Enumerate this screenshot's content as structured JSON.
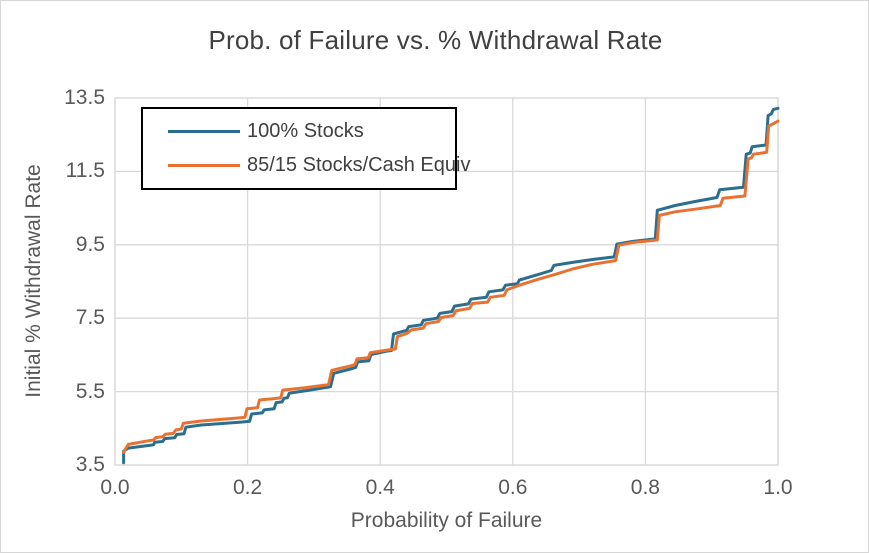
{
  "chart": {
    "background": "#FFFFFF",
    "border_color": "#D6D6D6",
    "grid_color": "#D9D9D9",
    "title_color": "#404040",
    "axis_text_color": "#595959",
    "legend_text_color": "#404040",
    "legend_border_color": "#000000"
  },
  "chart_data": {
    "type": "line",
    "title": "Prob. of Failure vs. % Withdrawal Rate",
    "xlabel": "Probability of Failure",
    "ylabel": "Initial % Withdrawal Rate",
    "xlim": [
      0.0,
      1.0
    ],
    "ylim": [
      3.5,
      13.5
    ],
    "x_ticks": [
      "0.0",
      "0.2",
      "0.4",
      "0.6",
      "0.8",
      "1.0"
    ],
    "y_ticks": [
      "3.5",
      "5.5",
      "7.5",
      "9.5",
      "11.5",
      "13.5"
    ],
    "grid": true,
    "legend_position": "top-left",
    "series": [
      {
        "name": "100% Stocks",
        "color": "#2B6E8E",
        "points": [
          [
            0.013,
            3.56
          ],
          [
            0.013,
            3.88
          ],
          [
            0.02,
            3.96
          ],
          [
            0.05,
            4.03
          ],
          [
            0.058,
            4.05
          ],
          [
            0.06,
            4.12
          ],
          [
            0.072,
            4.14
          ],
          [
            0.075,
            4.22
          ],
          [
            0.09,
            4.24
          ],
          [
            0.093,
            4.33
          ],
          [
            0.104,
            4.35
          ],
          [
            0.107,
            4.53
          ],
          [
            0.13,
            4.59
          ],
          [
            0.19,
            4.67
          ],
          [
            0.203,
            4.69
          ],
          [
            0.206,
            4.89
          ],
          [
            0.222,
            4.92
          ],
          [
            0.225,
            5.0
          ],
          [
            0.24,
            5.03
          ],
          [
            0.243,
            5.2
          ],
          [
            0.252,
            5.22
          ],
          [
            0.255,
            5.32
          ],
          [
            0.26,
            5.33
          ],
          [
            0.263,
            5.46
          ],
          [
            0.29,
            5.53
          ],
          [
            0.325,
            5.63
          ],
          [
            0.33,
            6.0
          ],
          [
            0.358,
            6.13
          ],
          [
            0.363,
            6.16
          ],
          [
            0.366,
            6.31
          ],
          [
            0.383,
            6.34
          ],
          [
            0.386,
            6.51
          ],
          [
            0.41,
            6.6
          ],
          [
            0.417,
            6.62
          ],
          [
            0.42,
            7.07
          ],
          [
            0.44,
            7.17
          ],
          [
            0.443,
            7.27
          ],
          [
            0.462,
            7.32
          ],
          [
            0.465,
            7.44
          ],
          [
            0.486,
            7.5
          ],
          [
            0.49,
            7.63
          ],
          [
            0.508,
            7.68
          ],
          [
            0.512,
            7.83
          ],
          [
            0.533,
            7.89
          ],
          [
            0.537,
            8.02
          ],
          [
            0.56,
            8.07
          ],
          [
            0.564,
            8.22
          ],
          [
            0.585,
            8.27
          ],
          [
            0.589,
            8.4
          ],
          [
            0.607,
            8.44
          ],
          [
            0.61,
            8.54
          ],
          [
            0.64,
            8.7
          ],
          [
            0.658,
            8.8
          ],
          [
            0.662,
            8.94
          ],
          [
            0.69,
            9.02
          ],
          [
            0.72,
            9.1
          ],
          [
            0.753,
            9.17
          ],
          [
            0.757,
            9.52
          ],
          [
            0.78,
            9.59
          ],
          [
            0.815,
            9.66
          ],
          [
            0.818,
            10.44
          ],
          [
            0.845,
            10.57
          ],
          [
            0.875,
            10.68
          ],
          [
            0.908,
            10.79
          ],
          [
            0.912,
            11.0
          ],
          [
            0.948,
            11.07
          ],
          [
            0.952,
            11.97
          ],
          [
            0.958,
            12.0
          ],
          [
            0.961,
            12.17
          ],
          [
            0.982,
            12.22
          ],
          [
            0.985,
            13.02
          ],
          [
            0.99,
            13.07
          ],
          [
            0.993,
            13.19
          ],
          [
            1.0,
            13.22
          ]
        ]
      },
      {
        "name": "85/15 Stocks/Cash Equiv",
        "color": "#E97132",
        "points": [
          [
            0.013,
            3.84
          ],
          [
            0.016,
            3.94
          ],
          [
            0.02,
            4.06
          ],
          [
            0.05,
            4.16
          ],
          [
            0.058,
            4.18
          ],
          [
            0.062,
            4.25
          ],
          [
            0.072,
            4.27
          ],
          [
            0.076,
            4.34
          ],
          [
            0.088,
            4.36
          ],
          [
            0.092,
            4.46
          ],
          [
            0.1,
            4.48
          ],
          [
            0.103,
            4.64
          ],
          [
            0.13,
            4.7
          ],
          [
            0.19,
            4.79
          ],
          [
            0.196,
            4.8
          ],
          [
            0.199,
            5.03
          ],
          [
            0.215,
            5.06
          ],
          [
            0.218,
            5.27
          ],
          [
            0.24,
            5.31
          ],
          [
            0.25,
            5.33
          ],
          [
            0.253,
            5.54
          ],
          [
            0.285,
            5.6
          ],
          [
            0.322,
            5.69
          ],
          [
            0.327,
            6.08
          ],
          [
            0.355,
            6.2
          ],
          [
            0.362,
            6.24
          ],
          [
            0.365,
            6.39
          ],
          [
            0.382,
            6.42
          ],
          [
            0.385,
            6.56
          ],
          [
            0.41,
            6.63
          ],
          [
            0.423,
            6.66
          ],
          [
            0.426,
            7.0
          ],
          [
            0.44,
            7.08
          ],
          [
            0.447,
            7.18
          ],
          [
            0.465,
            7.23
          ],
          [
            0.469,
            7.35
          ],
          [
            0.488,
            7.41
          ],
          [
            0.492,
            7.52
          ],
          [
            0.51,
            7.57
          ],
          [
            0.514,
            7.7
          ],
          [
            0.535,
            7.77
          ],
          [
            0.539,
            7.9
          ],
          [
            0.562,
            7.94
          ],
          [
            0.566,
            8.07
          ],
          [
            0.587,
            8.12
          ],
          [
            0.591,
            8.27
          ],
          [
            0.61,
            8.4
          ],
          [
            0.64,
            8.57
          ],
          [
            0.665,
            8.7
          ],
          [
            0.69,
            8.84
          ],
          [
            0.72,
            8.97
          ],
          [
            0.755,
            9.07
          ],
          [
            0.76,
            9.49
          ],
          [
            0.78,
            9.56
          ],
          [
            0.818,
            9.63
          ],
          [
            0.821,
            10.3
          ],
          [
            0.845,
            10.4
          ],
          [
            0.875,
            10.47
          ],
          [
            0.913,
            10.57
          ],
          [
            0.917,
            10.77
          ],
          [
            0.95,
            10.83
          ],
          [
            0.955,
            11.84
          ],
          [
            0.96,
            11.87
          ],
          [
            0.963,
            11.97
          ],
          [
            0.983,
            12.02
          ],
          [
            0.986,
            12.74
          ],
          [
            0.99,
            12.77
          ],
          [
            1.0,
            12.87
          ]
        ]
      }
    ]
  }
}
